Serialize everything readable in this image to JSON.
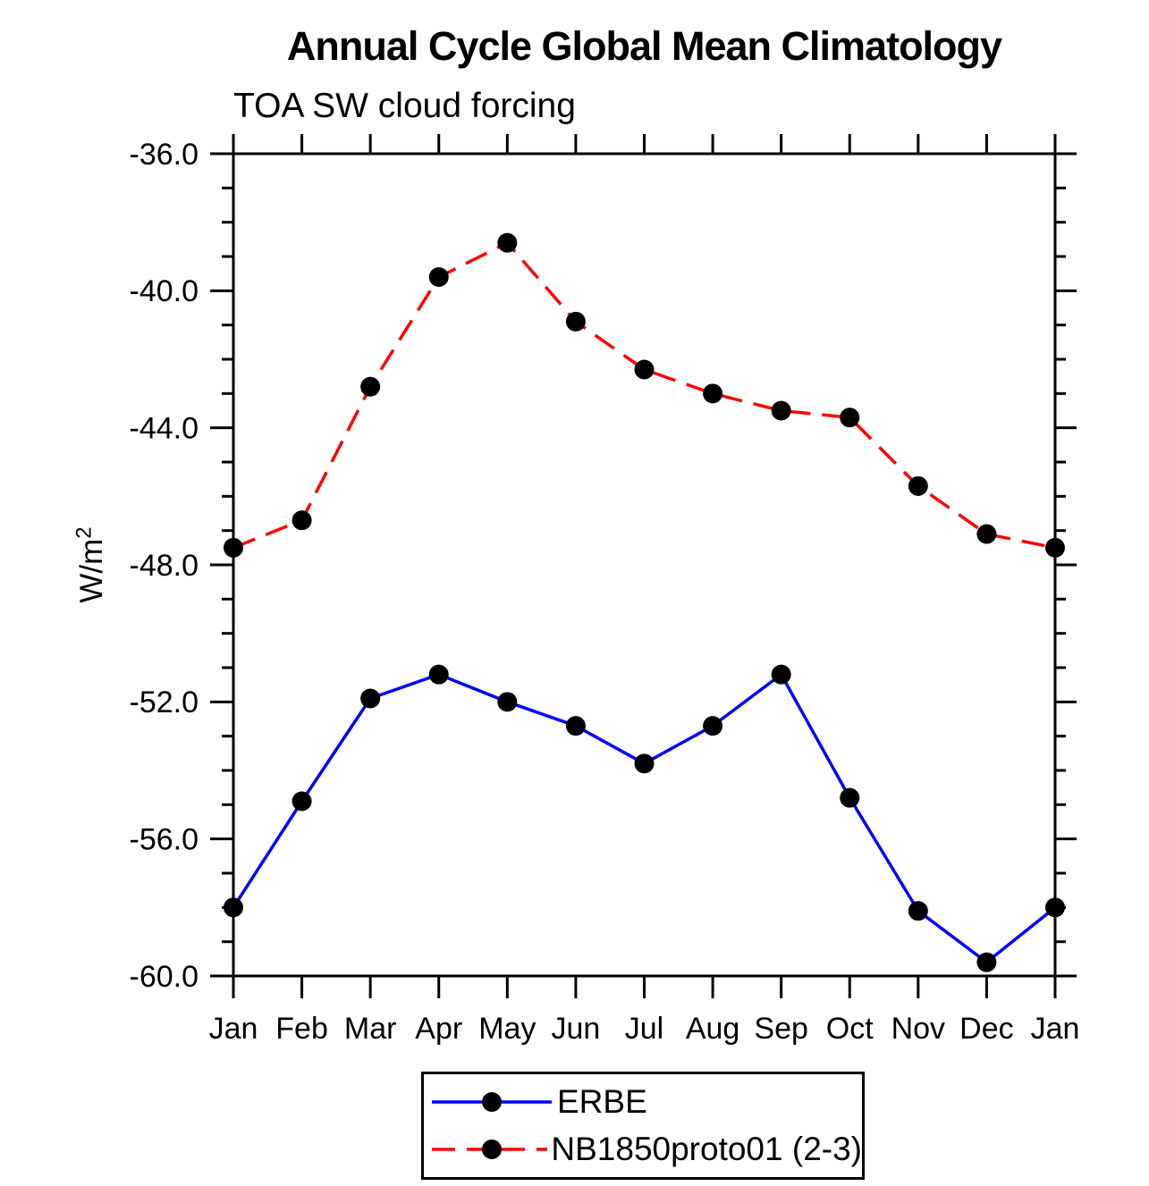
{
  "title": "Annual Cycle Global Mean Climatology",
  "subtitle": "TOA SW cloud forcing",
  "chart_data": {
    "type": "line",
    "title": "Annual Cycle Global Mean Climatology",
    "subtitle": "TOA SW cloud forcing",
    "ylabel_base": "W/m",
    "ylabel_exponent": "2",
    "categories": [
      "Jan",
      "Feb",
      "Mar",
      "Apr",
      "May",
      "Jun",
      "Jul",
      "Aug",
      "Sep",
      "Oct",
      "Nov",
      "Dec",
      "Jan"
    ],
    "series": [
      {
        "name": "ERBE",
        "color": "#0000ff",
        "line_style": "solid",
        "marker": "filled-circle",
        "marker_color": "#000000",
        "values": [
          -58.0,
          -54.9,
          -51.9,
          -51.2,
          -52.0,
          -52.7,
          -53.8,
          -52.7,
          -51.2,
          -54.8,
          -58.1,
          -59.6,
          -58.0
        ]
      },
      {
        "name": "NB1850proto01 (2-3)",
        "color": "#ff0000",
        "line_style": "dashed",
        "marker": "filled-circle",
        "marker_color": "#000000",
        "values": [
          -47.5,
          -46.7,
          -42.8,
          -39.6,
          -38.6,
          -40.9,
          -42.3,
          -43.0,
          -43.5,
          -43.7,
          -45.7,
          -47.1,
          -47.5
        ]
      }
    ],
    "ylim": [
      -60.0,
      -36.0
    ],
    "y_major_ticks": [
      {
        "value": -36,
        "label": "-36.0"
      },
      {
        "value": -40,
        "label": "-40.0"
      },
      {
        "value": -44,
        "label": "-44.0"
      },
      {
        "value": -48,
        "label": "-48.0"
      },
      {
        "value": -52,
        "label": "-52.0"
      },
      {
        "value": -56,
        "label": "-56.0"
      },
      {
        "value": -60,
        "label": "-60.0"
      }
    ],
    "y_minor_step": 1,
    "grid": false,
    "legend_position": "bottom-center",
    "axis_color": "#000000",
    "background_color": "#ffffff"
  }
}
